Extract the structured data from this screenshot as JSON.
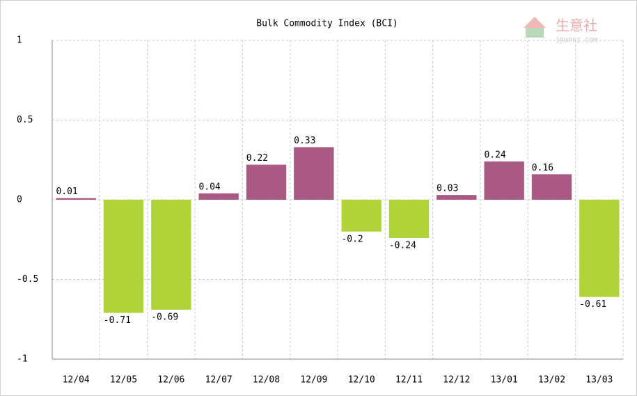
{
  "chart_data": {
    "type": "bar",
    "title": "Bulk Commodity Index (BCI)",
    "categories": [
      "12/04",
      "12/05",
      "12/06",
      "12/07",
      "12/08",
      "12/09",
      "12/10",
      "12/11",
      "12/12",
      "13/01",
      "13/02",
      "13/03"
    ],
    "values": [
      0.01,
      -0.71,
      -0.69,
      0.04,
      0.22,
      0.33,
      -0.2,
      -0.24,
      0.03,
      0.24,
      0.16,
      -0.61
    ],
    "positive_color": "#a85a82",
    "negative_color": "#aed43a",
    "ylim": [
      -1,
      1
    ],
    "yticks": [
      -1,
      -0.5,
      0,
      0.5,
      1
    ],
    "grid": true,
    "watermark": {
      "name": "生意社",
      "site": "100PPI.COM"
    }
  }
}
